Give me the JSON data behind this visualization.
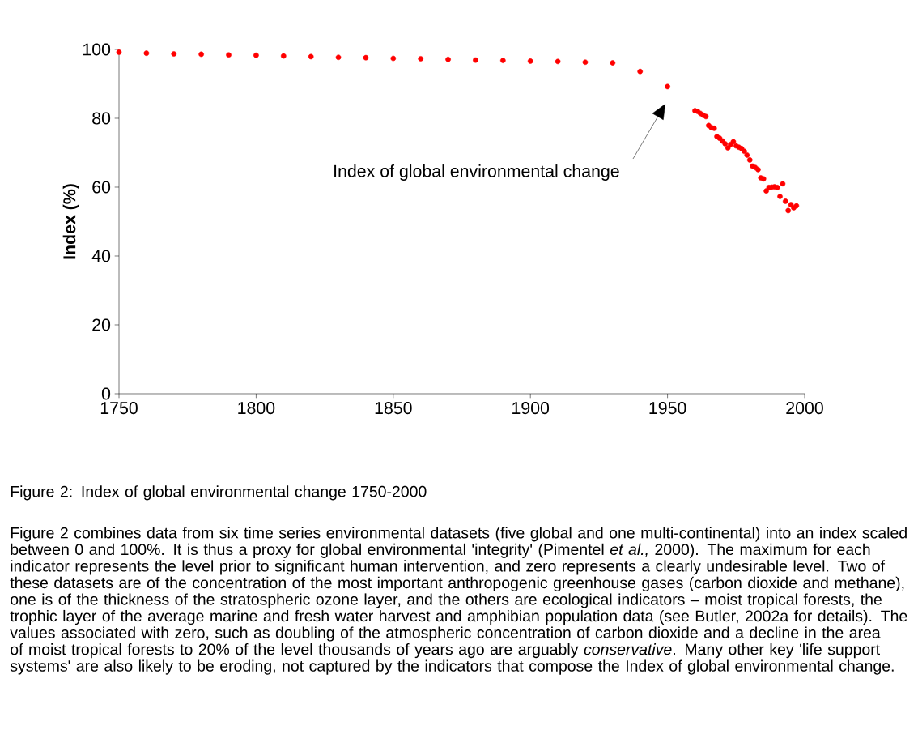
{
  "chart_data": {
    "type": "scatter",
    "ylabel": "Index (%)",
    "x": [
      1750,
      1760,
      1770,
      1780,
      1790,
      1800,
      1810,
      1820,
      1830,
      1840,
      1850,
      1860,
      1870,
      1880,
      1890,
      1900,
      1910,
      1920,
      1930,
      1940,
      1950,
      1960,
      1961,
      1962,
      1963,
      1964,
      1965,
      1966,
      1967,
      1968,
      1969,
      1970,
      1971,
      1972,
      1973,
      1974,
      1975,
      1976,
      1977,
      1978,
      1979,
      1980,
      1981,
      1982,
      1983,
      1984,
      1985,
      1986,
      1987,
      1988,
      1989,
      1990,
      1991,
      1992,
      1993,
      1994,
      1995,
      1996,
      1997
    ],
    "values": [
      99.2,
      98.9,
      98.7,
      98.6,
      98.4,
      98.3,
      98.1,
      97.9,
      97.7,
      97.6,
      97.4,
      97.3,
      97.1,
      96.9,
      96.8,
      96.6,
      96.5,
      96.3,
      96.1,
      93.6,
      89.2,
      82.2,
      82.0,
      81.4,
      80.9,
      80.5,
      77.9,
      77.3,
      77.1,
      74.7,
      74.2,
      73.4,
      72.6,
      71.4,
      72.4,
      73.2,
      72.0,
      71.6,
      71.2,
      70.4,
      69.3,
      67.9,
      66.1,
      65.7,
      65.1,
      62.7,
      62.4,
      58.9,
      59.9,
      60.0,
      60.1,
      59.9,
      57.3,
      61.0,
      55.9,
      53.2,
      54.9,
      54.0,
      54.6
    ],
    "color": "#ff0000",
    "marker": "circle",
    "xlim": [
      1750,
      2000
    ],
    "ylim": [
      0,
      100
    ],
    "xticks": [
      1750,
      1800,
      1850,
      1900,
      1950,
      2000
    ],
    "yticks": [
      0,
      20,
      40,
      60,
      80,
      100
    ],
    "annotations": [
      "Index of global environmental change",
      "Figure 2:    Index of global environmental change 1750-2000",
      "Figure 2 combines data from six time series environmental datasets (five global and one multi-continental) into an index scaled between 0 and 100%. It is thus a proxy for global environmental 'integrity' (Pimentel *et al.,* 2000). The maximum for each indicator represents the level prior to significant human intervention, and zero represents a clearly undesirable level. Two of these datasets are of the concentration of the most important anthropogenic greenhouse gases (carbon dioxide and methane), one is of the thickness of the stratospheric ozone layer, and the others are ecological indicators – moist tropical forests, the trophic layer of the average marine and fresh water harvest and amphibian population data (see Butler, 2002a for details). The values associated with zero, such as doubling of the atmospheric concentration of carbon dioxide and a decline in the area of moist tropical forests to 20% of the level thousands of years ago are arguably *conservative*. Many other key 'life support systems' are also likely to be eroding, not captured by the indicators that compose the Index of global environmental change."
    ]
  }
}
